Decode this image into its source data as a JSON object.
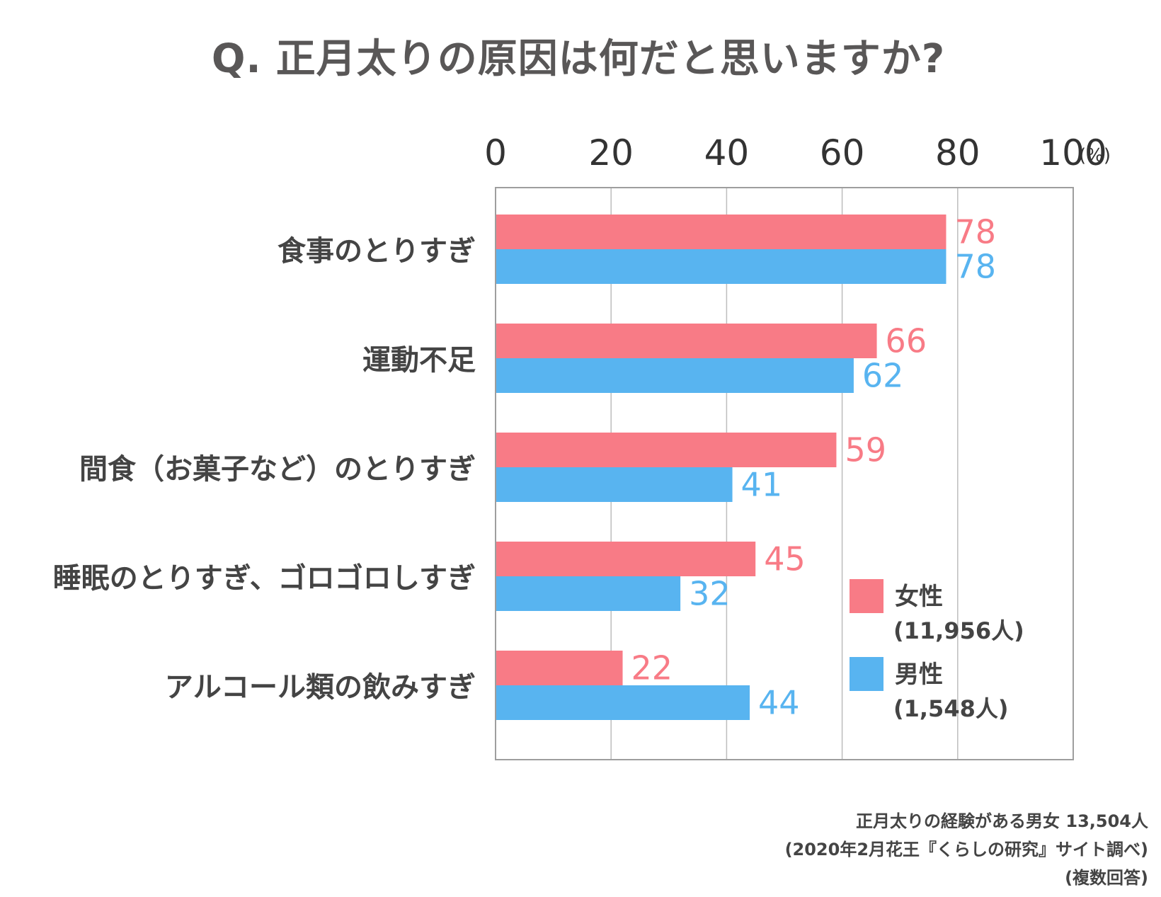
{
  "title": {
    "prefix": "Q.",
    "text": "正月太りの原因は何だと思いますか?"
  },
  "chart_data": {
    "type": "bar",
    "orientation": "horizontal",
    "categories": [
      "食事のとりすぎ",
      "運動不足",
      "間食（お菓子など）のとりすぎ",
      "睡眠のとりすぎ、ゴロゴロしすぎ",
      "アルコール類の飲みすぎ"
    ],
    "series": [
      {
        "name": "女性",
        "sublabel": "(11,956人)",
        "color": "#f87b86",
        "values": [
          78,
          66,
          59,
          45,
          22
        ]
      },
      {
        "name": "男性",
        "sublabel": "(1,548人)",
        "color": "#58b4f0",
        "values": [
          78,
          62,
          41,
          32,
          44
        ]
      }
    ],
    "x_ticks": [
      "0",
      "20",
      "40",
      "60",
      "80",
      "100"
    ],
    "x_unit": "(%)",
    "xlim": [
      0,
      100
    ],
    "grid": true,
    "legend_position": "bottom-right inside plot"
  },
  "footnote": {
    "line1": "正月太りの経験がある男女 13,504人",
    "line2": "(2020年2月花王『くらしの研究』サイト調べ)",
    "line3": "(複数回答)"
  }
}
